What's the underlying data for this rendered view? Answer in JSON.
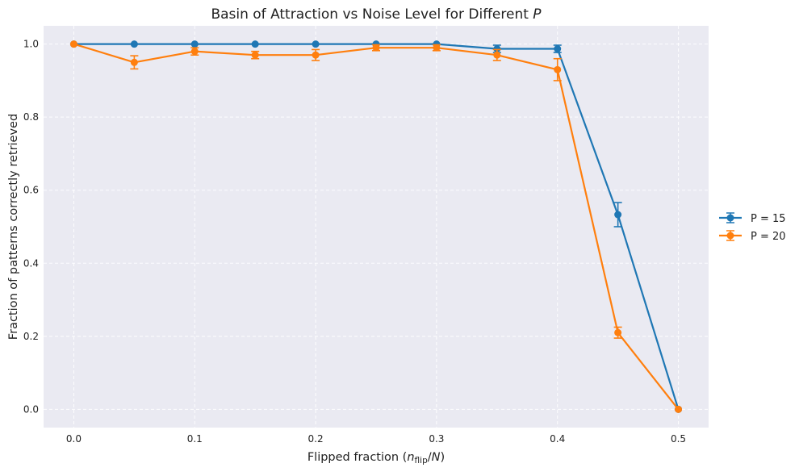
{
  "chart_data": {
    "type": "line",
    "title": "Basin of Attraction vs Noise Level for Different P",
    "xlabel": "Flipped fraction (n_flip/N)",
    "ylabel": "Fraction of patterns correctly retrieved",
    "x": [
      0.0,
      0.05,
      0.1,
      0.15,
      0.2,
      0.25,
      0.3,
      0.35,
      0.4,
      0.45,
      0.5
    ],
    "xlim": [
      -0.025,
      0.525
    ],
    "ylim": [
      -0.05,
      1.05
    ],
    "xticks": [
      "0.0",
      "0.1",
      "0.2",
      "0.3",
      "0.4",
      "0.5"
    ],
    "yticks": [
      "0.0",
      "0.2",
      "0.4",
      "0.6",
      "0.8",
      "1.0"
    ],
    "grid": true,
    "legend_position": "outside-right",
    "series": [
      {
        "name": "P = 15",
        "color": "#1f77b4",
        "values": [
          1.0,
          1.0,
          1.0,
          1.0,
          1.0,
          1.0,
          1.0,
          0.987,
          0.987,
          0.533,
          0.0
        ],
        "errors": [
          0.0,
          0.0,
          0.0,
          0.0,
          0.0,
          0.0,
          0.0,
          0.01,
          0.01,
          0.033,
          0.0
        ]
      },
      {
        "name": "P = 20",
        "color": "#ff7f0e",
        "values": [
          1.0,
          0.95,
          0.98,
          0.97,
          0.97,
          0.99,
          0.99,
          0.97,
          0.93,
          0.21,
          0.0
        ],
        "errors": [
          0.0,
          0.018,
          0.01,
          0.01,
          0.015,
          0.008,
          0.008,
          0.015,
          0.03,
          0.015,
          0.0
        ]
      }
    ]
  }
}
